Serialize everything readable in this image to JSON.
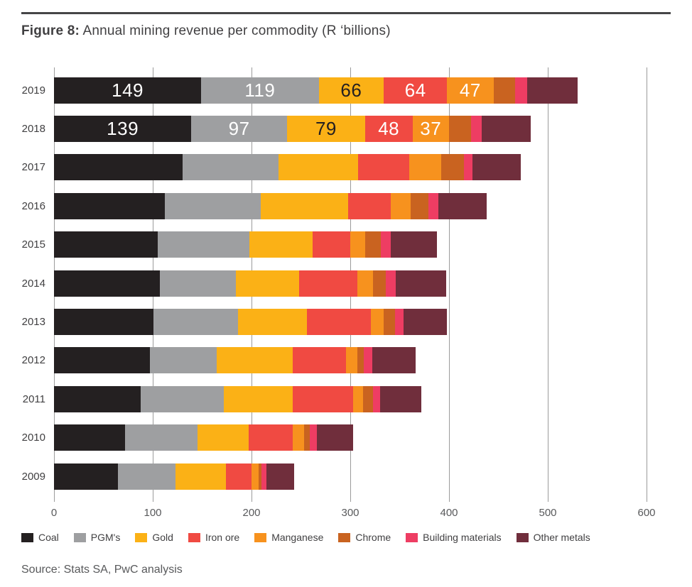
{
  "title": {
    "prefix": "Figure 8:",
    "text": " Annual mining revenue per commodity (R ‘billions)"
  },
  "source": "Source: Stats SA, PwC analysis",
  "axis": {
    "ticks": [
      0,
      100,
      200,
      300,
      400,
      500,
      600
    ],
    "max": 600
  },
  "chart_data": {
    "type": "bar",
    "orientation": "horizontal",
    "stacked": true,
    "title": "Annual mining revenue per commodity (R 'billions)",
    "xlabel": "Revenue (R 'billions)",
    "ylabel": "Year",
    "xlim": [
      0,
      600
    ],
    "grid": "vertical",
    "legend_position": "bottom",
    "categories": [
      "2019",
      "2018",
      "2017",
      "2016",
      "2015",
      "2014",
      "2013",
      "2012",
      "2011",
      "2010",
      "2009"
    ],
    "series": [
      {
        "name": "Coal",
        "color": "#242021",
        "label_text_color": "#ffffff",
        "values": [
          149,
          139,
          130,
          112,
          105,
          107,
          101,
          97,
          88,
          72,
          65
        ]
      },
      {
        "name": "PGM's",
        "color": "#9e9fa1",
        "label_text_color": "#ffffff",
        "values": [
          119,
          97,
          97,
          97,
          93,
          77,
          85,
          68,
          84,
          73,
          58
        ]
      },
      {
        "name": "Gold",
        "color": "#fbb116",
        "label_text_color": "#242021",
        "values": [
          66,
          79,
          81,
          89,
          64,
          64,
          70,
          77,
          70,
          52,
          51
        ]
      },
      {
        "name": "Iron ore",
        "color": "#f04a42",
        "label_text_color": "#ffffff",
        "values": [
          64,
          48,
          52,
          43,
          38,
          59,
          65,
          54,
          61,
          45,
          26
        ]
      },
      {
        "name": "Manganese",
        "color": "#f7921e",
        "label_text_color": "#ffffff",
        "values": [
          47,
          37,
          32,
          20,
          15,
          16,
          13,
          11,
          10,
          11,
          7
        ]
      },
      {
        "name": "Chrome",
        "color": "#c96320",
        "label_text_color": "#ffffff",
        "values": [
          22,
          22,
          23,
          18,
          16,
          13,
          11,
          7,
          10,
          6,
          3
        ]
      },
      {
        "name": "Building materials",
        "color": "#ee3d63",
        "label_text_color": "#ffffff",
        "values": [
          12,
          11,
          9,
          10,
          10,
          10,
          9,
          8,
          7,
          7,
          5
        ]
      },
      {
        "name": "Other metals",
        "color": "#702e3c",
        "label_text_color": "#ffffff",
        "values": [
          51,
          50,
          49,
          49,
          47,
          51,
          44,
          44,
          42,
          37,
          28
        ]
      }
    ],
    "data_labels": {
      "rows": [
        "2019",
        "2018"
      ],
      "series": [
        "Coal",
        "PGM's",
        "Gold",
        "Iron ore",
        "Manganese"
      ],
      "values": {
        "2019": [
          149,
          119,
          66,
          64,
          47
        ],
        "2018": [
          139,
          97,
          79,
          48,
          37
        ]
      }
    }
  }
}
